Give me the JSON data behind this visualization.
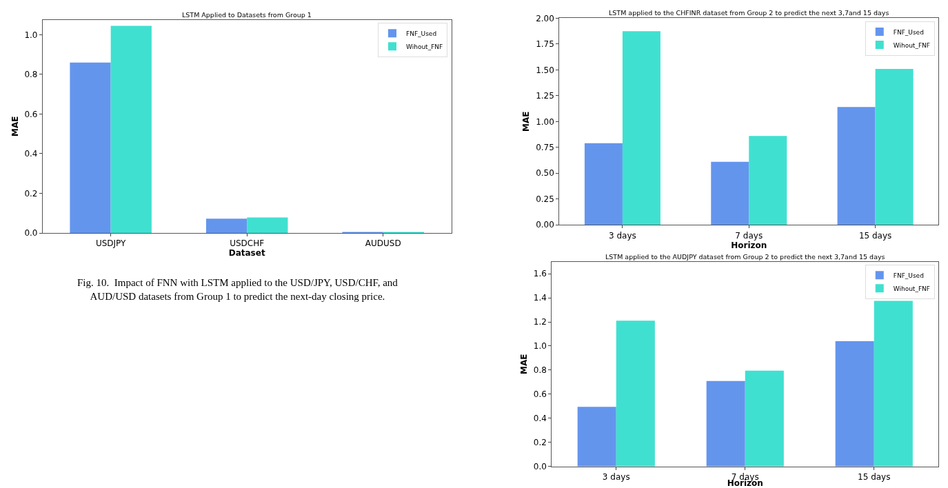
{
  "chart_data": [
    {
      "type": "bar",
      "title": "LSTM Applied to Datasets from Group 1",
      "xlabel": "Dataset",
      "ylabel": "MAE",
      "categories": [
        "USDJPY",
        "USDCHF",
        "AUDUSD"
      ],
      "series": [
        {
          "name": "FNF_Used",
          "color": "#6495ed",
          "values": [
            0.86,
            0.072,
            0.004
          ]
        },
        {
          "name": "Wihout_FNF",
          "color": "#40e0d0",
          "values": [
            1.045,
            0.078,
            0.003
          ]
        }
      ],
      "ylim": [
        0,
        1.076
      ],
      "yticks": [
        {
          "value": 0,
          "label": "0.0"
        },
        {
          "value": 0.2,
          "label": "0.2"
        },
        {
          "value": 0.4,
          "label": "0.4"
        },
        {
          "value": 0.6,
          "label": "0.6"
        },
        {
          "value": 0.8,
          "label": "0.8"
        },
        {
          "value": 1,
          "label": "1.0"
        }
      ],
      "legend": "top right",
      "annotations": [
        "Fig. 10.  Impact of FNN with LSTM applied to the USD/JPY, USD/CHF, and\nAUD/USD datasets from Group 1 to predict the next-day closing price."
      ]
    },
    {
      "type": "bar",
      "title": "LSTM applied to the CHFINR dataset from Group 2 to predict the next 3,7and 15 days",
      "xlabel": "Horizon",
      "ylabel": "MAE",
      "categories": [
        "3 days",
        "7 days",
        "15 days"
      ],
      "series": [
        {
          "name": "FNF_Used",
          "color": "#6495ed",
          "values": [
            0.79,
            0.61,
            1.14
          ]
        },
        {
          "name": "Wihout_FNF",
          "color": "#40e0d0",
          "values": [
            1.875,
            0.86,
            1.51
          ]
        }
      ],
      "ylim": [
        0,
        2
      ],
      "yticks": [
        {
          "value": 0,
          "label": "0.00"
        },
        {
          "value": 0.25,
          "label": "0.25"
        },
        {
          "value": 0.5,
          "label": "0.50"
        },
        {
          "value": 0.75,
          "label": "0.75"
        },
        {
          "value": 1,
          "label": "1.00"
        },
        {
          "value": 1.25,
          "label": "1.25"
        },
        {
          "value": 1.5,
          "label": "1.50"
        },
        {
          "value": 1.75,
          "label": "1.75"
        },
        {
          "value": 2,
          "label": "2.00"
        }
      ],
      "legend": "top right"
    },
    {
      "type": "bar",
      "title": "LSTM applied to the AUDJPY dataset from Group 2 to predict the next 3,7and 15 days",
      "xlabel": "Horizon",
      "ylabel": "MAE",
      "categories": [
        "3 days",
        "7 days",
        "15 days"
      ],
      "series": [
        {
          "name": "FNF_Used",
          "color": "#6495ed",
          "values": [
            0.495,
            0.71,
            1.04
          ]
        },
        {
          "name": "Wihout_FNF",
          "color": "#40e0d0",
          "values": [
            1.21,
            0.795,
            1.375
          ]
        }
      ],
      "ylim": [
        0,
        1.7
      ],
      "yticks": [
        {
          "value": 0,
          "label": "0.0"
        },
        {
          "value": 0.2,
          "label": "0.2"
        },
        {
          "value": 0.4,
          "label": "0.4"
        },
        {
          "value": 0.6,
          "label": "0.6"
        },
        {
          "value": 0.8,
          "label": "0.8"
        },
        {
          "value": 1,
          "label": "1.0"
        },
        {
          "value": 1.2,
          "label": "1.2"
        },
        {
          "value": 1.4,
          "label": "1.4"
        },
        {
          "value": 1.6,
          "label": "1.6"
        }
      ],
      "legend": "top right"
    }
  ]
}
